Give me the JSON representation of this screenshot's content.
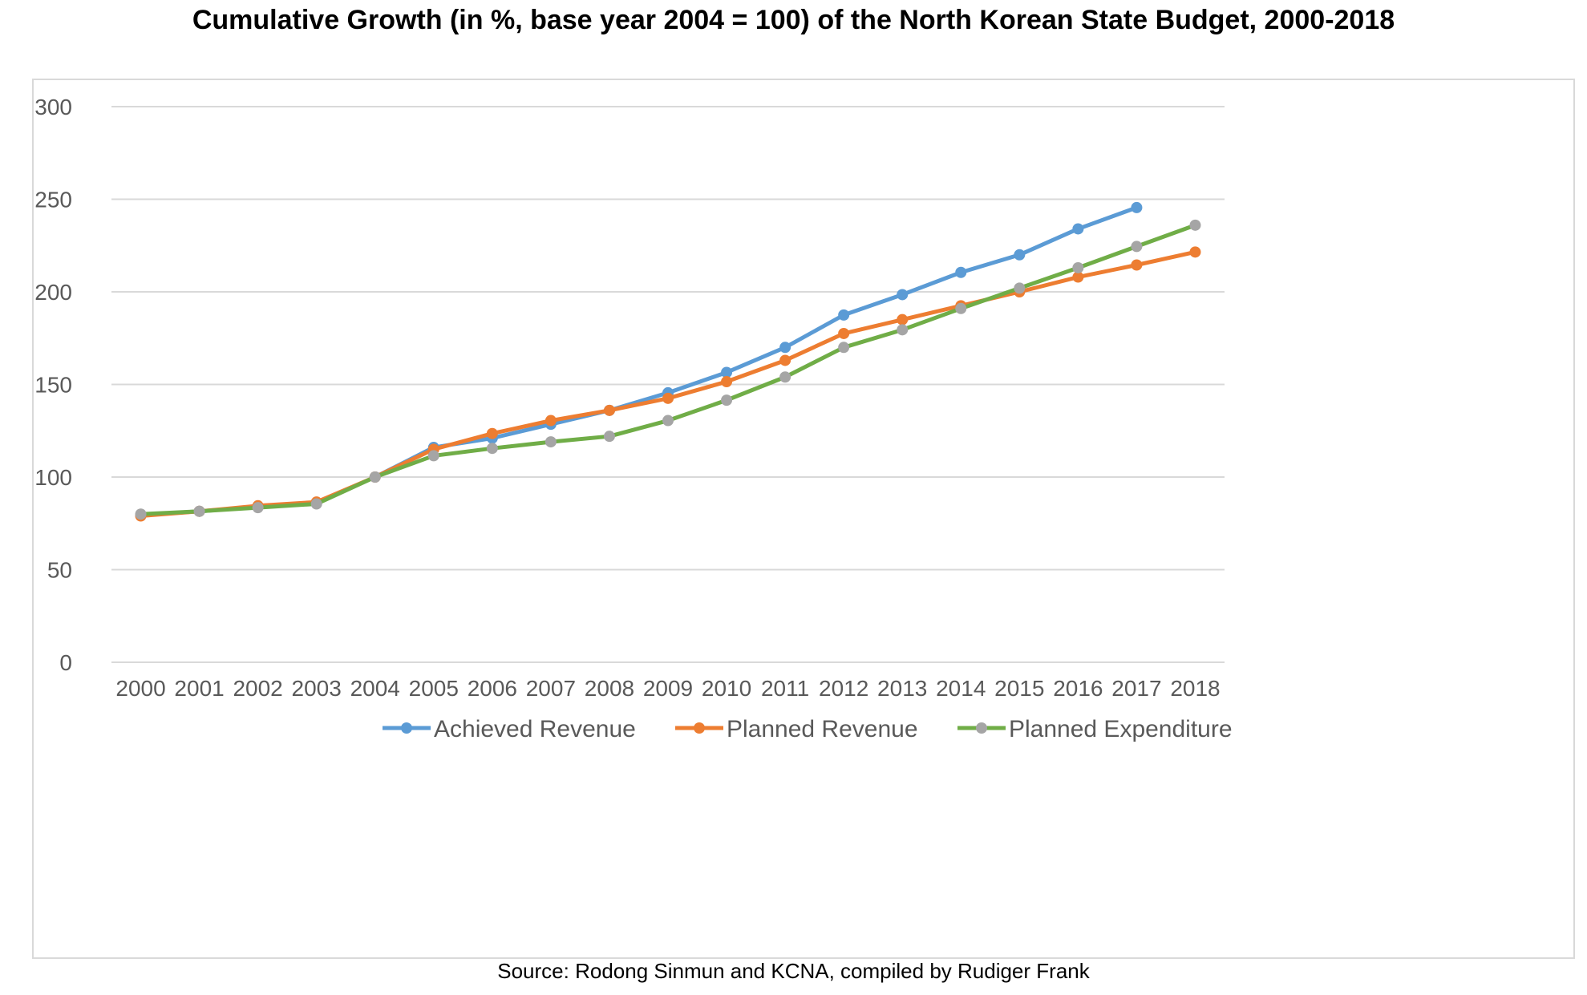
{
  "chart_data": {
    "type": "line",
    "title": "Cumulative Growth (in %, base year 2004 = 100) of the North Korean State Budget, 2000-2018",
    "source": "Source: Rodong Sinmun and KCNA, compiled by Rudiger Frank",
    "categories": [
      "2000",
      "2001",
      "2002",
      "2003",
      "2004",
      "2005",
      "2006",
      "2007",
      "2008",
      "2009",
      "2010",
      "2011",
      "2012",
      "2013",
      "2014",
      "2015",
      "2016",
      "2017",
      "2018"
    ],
    "ylim": [
      0,
      300
    ],
    "yticks": [
      "0",
      "50",
      "100",
      "150",
      "200",
      "250",
      "300"
    ],
    "grid": true,
    "legend_position": "bottom",
    "series": [
      {
        "name": "Achieved Revenue",
        "color": "#5b9bd5",
        "values": [
          79.5,
          81.5,
          84,
          86,
          100,
          116,
          121,
          128.5,
          136,
          145.5,
          156.5,
          170,
          187.5,
          198.5,
          210.5,
          220,
          234,
          245.5,
          null
        ]
      },
      {
        "name": "Planned Revenue",
        "color": "#ed7d31",
        "values": [
          79,
          81.5,
          84.5,
          86.5,
          100,
          115,
          123.5,
          130.5,
          136,
          142.5,
          151.5,
          163,
          177.5,
          185,
          192.5,
          200,
          208,
          214.5,
          221.5
        ]
      },
      {
        "name": "Planned Expenditure",
        "color": "#70ad47",
        "marker_color": "#a5a5a5",
        "values": [
          80,
          81.5,
          83.5,
          85.5,
          100,
          111.5,
          115.5,
          119,
          122,
          130.5,
          141.5,
          154,
          170,
          179.5,
          191,
          202,
          213,
          224.5,
          236
        ]
      }
    ]
  }
}
